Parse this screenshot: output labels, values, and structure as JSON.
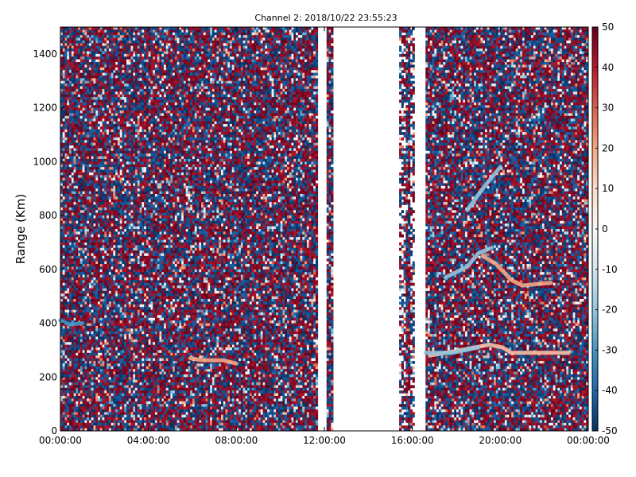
{
  "chart_data": [
    {
      "type": "heatmap",
      "title": "Channel 2: 2018/10/22 23:55:23",
      "xlabel": "",
      "ylabel": "Range (Km)",
      "x_ticks": [
        "00:00:00",
        "04:00:00",
        "08:00:00",
        "12:00:00",
        "16:00:00",
        "20:00:00",
        "00:00:00"
      ],
      "x_range_hours": [
        0,
        24
      ],
      "y_ticks": [
        0,
        200,
        400,
        600,
        800,
        1000,
        1200,
        1400
      ],
      "ylim": [
        0,
        1500
      ],
      "colorbar": {
        "ticks": [
          50,
          40,
          30,
          20,
          10,
          0,
          -10,
          -20,
          -30,
          -40,
          -50
        ],
        "range": [
          -50,
          50
        ],
        "colormap": "RdBu_r",
        "colors": {
          "low": "#053061",
          "mid": "#f7f7f7",
          "high": "#67001f"
        }
      },
      "data_gaps_hours": [
        [
          11.7,
          12.1
        ],
        [
          12.4,
          15.4
        ],
        [
          16.1,
          16.6
        ]
      ],
      "sparse_columns_hours": [
        [
          15.4,
          15.7
        ],
        [
          15.9,
          16.1
        ]
      ],
      "features": [
        {
          "kind": "streak",
          "value": 20,
          "points": [
            [
              5.9,
              270
            ],
            [
              6.5,
              262
            ],
            [
              7.4,
              262
            ],
            [
              8.0,
              250
            ]
          ]
        },
        {
          "kind": "streak",
          "value": -30,
          "points": [
            [
              0.0,
              410
            ],
            [
              0.4,
              395
            ],
            [
              1.0,
              400
            ]
          ]
        },
        {
          "kind": "streak",
          "value": 20,
          "points": [
            [
              19.2,
              650
            ],
            [
              19.8,
              620
            ],
            [
              20.5,
              560
            ],
            [
              21.0,
              540
            ],
            [
              22.3,
              550
            ]
          ]
        },
        {
          "kind": "streak",
          "value": -20,
          "points": [
            [
              17.5,
              570
            ],
            [
              18.5,
              610
            ],
            [
              19.0,
              660
            ],
            [
              19.6,
              680
            ]
          ]
        },
        {
          "kind": "streak",
          "value": 15,
          "points": [
            [
              16.8,
              280
            ],
            [
              18.2,
              300
            ],
            [
              19.5,
              320
            ],
            [
              20.1,
              310
            ],
            [
              20.5,
              290
            ],
            [
              21.5,
              290
            ],
            [
              23.1,
              290
            ]
          ]
        },
        {
          "kind": "streak",
          "value": -20,
          "points": [
            [
              16.6,
              290
            ],
            [
              17.8,
              290
            ],
            [
              19.0,
              310
            ]
          ]
        },
        {
          "kind": "streak",
          "value": -20,
          "points": [
            [
              18.5,
              820
            ],
            [
              19.2,
              900
            ],
            [
              20.0,
              980
            ]
          ]
        }
      ]
    }
  ]
}
